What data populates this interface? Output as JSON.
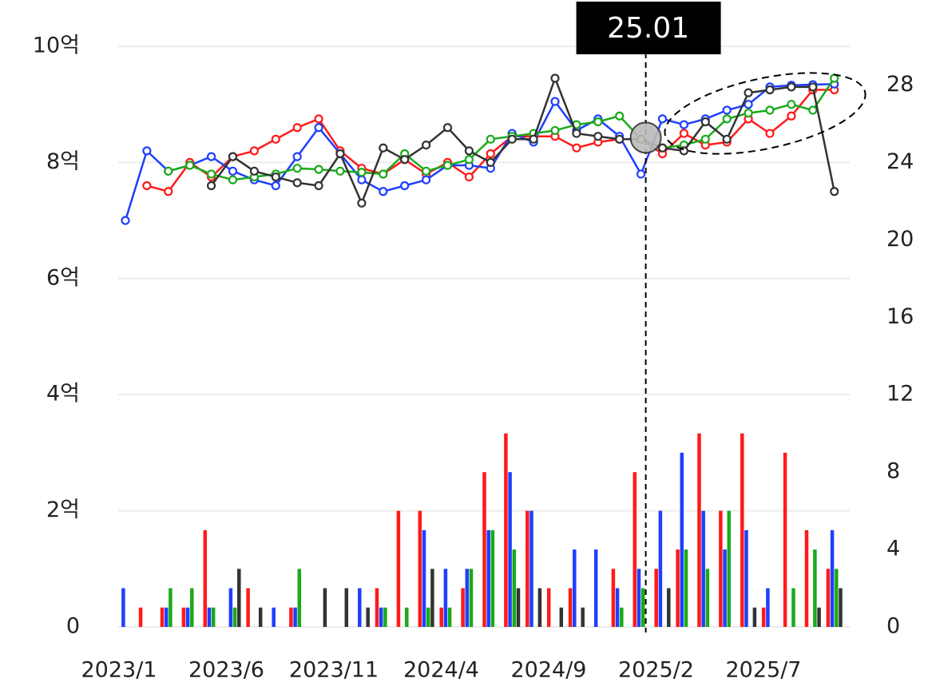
{
  "chart_data": {
    "type": "line",
    "annotation": "25.01",
    "categories": [
      "2023/1",
      null,
      null,
      null,
      null,
      "2023/6",
      null,
      null,
      null,
      null,
      "2023/11",
      null,
      null,
      null,
      null,
      "2024/4",
      null,
      null,
      null,
      null,
      "2024/9",
      null,
      null,
      null,
      null,
      "2025/2",
      null,
      null,
      null,
      null,
      "2025/7",
      null,
      null,
      null
    ],
    "ylim": [
      0,
      10
    ],
    "yticks": [
      0,
      {
        "value": 2,
        "label": "2억"
      },
      {
        "value": 4,
        "label": "4억"
      },
      {
        "value": 6,
        "label": "6억"
      },
      {
        "value": 8,
        "label": "8억"
      },
      {
        "value": 10,
        "label": "10억"
      }
    ],
    "y2lim": [
      0,
      30
    ],
    "y2ticks": [
      0,
      4,
      8,
      12,
      16,
      20,
      24,
      28
    ],
    "grid": true,
    "series": [
      {
        "type": "bar",
        "axis": "y2",
        "color": "#ff1a1a",
        "values": [
          null,
          1,
          1,
          1,
          5,
          null,
          2,
          null,
          1,
          null,
          null,
          null,
          2,
          6,
          6,
          1,
          2,
          8,
          10,
          6,
          2,
          2,
          null,
          3,
          8,
          3,
          4,
          10,
          6,
          10,
          1,
          9,
          5,
          3
        ]
      },
      {
        "type": "bar",
        "axis": "y2",
        "color": "#1f3fff",
        "values": [
          2,
          null,
          1,
          1,
          1,
          2,
          null,
          1,
          1,
          null,
          null,
          2,
          1,
          null,
          5,
          3,
          3,
          5,
          8,
          6,
          null,
          4,
          4,
          2,
          3,
          6,
          9,
          6,
          4,
          5,
          2,
          null,
          null,
          5
        ]
      },
      {
        "type": "bar",
        "axis": "y2",
        "color": "#1aaa1a",
        "values": [
          null,
          null,
          2,
          2,
          1,
          1,
          null,
          null,
          3,
          null,
          null,
          null,
          1,
          1,
          1,
          1,
          3,
          5,
          4,
          null,
          null,
          null,
          null,
          1,
          2,
          null,
          4,
          3,
          6,
          null,
          null,
          2,
          4,
          3
        ]
      },
      {
        "type": "bar",
        "axis": "y2",
        "color": "#333333",
        "values": [
          null,
          null,
          null,
          null,
          null,
          3,
          1,
          null,
          null,
          2,
          2,
          1,
          null,
          null,
          3,
          null,
          null,
          null,
          2,
          2,
          1,
          1,
          null,
          null,
          null,
          2,
          null,
          null,
          null,
          1,
          null,
          null,
          1,
          2
        ]
      },
      {
        "type": "line",
        "axis": "y",
        "color": "#ff1a1a",
        "values": [
          null,
          7.6,
          7.5,
          8.0,
          7.75,
          8.1,
          8.2,
          8.4,
          8.6,
          8.75,
          8.2,
          7.9,
          7.8,
          8.05,
          7.8,
          8.0,
          7.75,
          8.15,
          8.45,
          8.45,
          8.45,
          8.25,
          8.35,
          8.4,
          8.4,
          8.15,
          8.5,
          8.3,
          8.35,
          8.75,
          8.5,
          8.8,
          9.25,
          9.25
        ]
      },
      {
        "type": "line",
        "axis": "y",
        "color": "#1f3fff",
        "values": [
          7.0,
          8.2,
          7.85,
          7.95,
          8.1,
          7.85,
          7.7,
          7.6,
          8.1,
          8.6,
          8.15,
          7.7,
          7.5,
          7.6,
          7.7,
          7.95,
          7.95,
          7.9,
          8.5,
          8.35,
          9.05,
          8.55,
          8.75,
          8.45,
          7.8,
          8.75,
          8.65,
          8.75,
          8.9,
          9.0,
          9.3,
          9.33,
          9.34,
          9.35
        ]
      },
      {
        "type": "line",
        "axis": "y",
        "color": "#1aaa1a",
        "values": [
          null,
          null,
          7.85,
          7.95,
          7.8,
          7.7,
          7.75,
          7.8,
          7.9,
          7.88,
          7.85,
          7.83,
          7.8,
          8.15,
          7.85,
          7.95,
          8.05,
          8.4,
          8.45,
          8.5,
          8.55,
          8.65,
          8.7,
          8.8,
          8.4,
          8.25,
          8.3,
          8.4,
          8.75,
          8.85,
          8.9,
          9.0,
          8.9,
          9.45
        ]
      },
      {
        "type": "line",
        "axis": "y",
        "color": "#333333",
        "values": [
          null,
          null,
          null,
          null,
          7.6,
          8.1,
          7.85,
          7.75,
          7.65,
          7.6,
          8.15,
          7.3,
          8.25,
          8.05,
          8.3,
          8.6,
          8.2,
          8.0,
          8.4,
          8.4,
          9.45,
          8.5,
          8.45,
          8.4,
          8.4,
          8.25,
          8.2,
          8.7,
          8.4,
          9.2,
          9.25,
          9.3,
          9.3,
          7.5
        ]
      }
    ]
  }
}
